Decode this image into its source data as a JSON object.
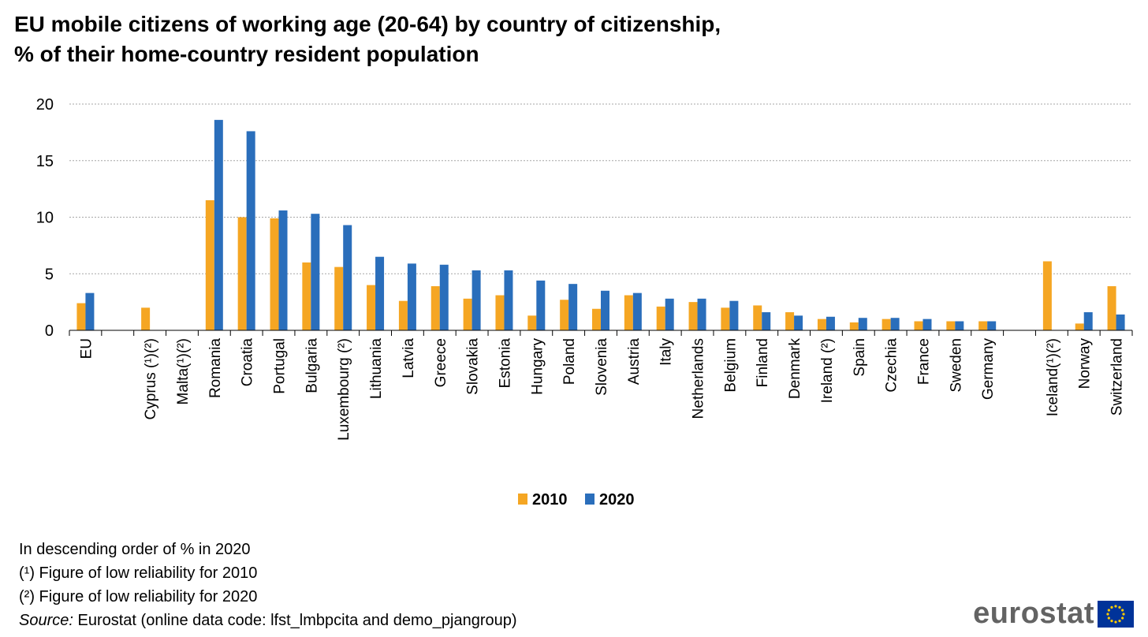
{
  "title": {
    "line1": "EU mobile citizens of working age (20-64) by country of citizenship,",
    "line2": "% of their home-country resident population"
  },
  "colors": {
    "2010": "#F5A623",
    "2020": "#2A6EBB",
    "grid": "#A6A6A6",
    "axis": "#000000"
  },
  "chart_data": {
    "type": "bar",
    "title": "EU mobile citizens of working age (20-64) by country of citizenship, % of their home-country resident population",
    "xlabel": "",
    "ylabel": "",
    "ylim": [
      0,
      20
    ],
    "yticks": [
      0,
      5,
      10,
      15,
      20
    ],
    "grid": true,
    "legend_position": "bottom-center",
    "categories": [
      "EU",
      "",
      "Cyprus (¹)(²)",
      "Malta(¹)(²)",
      "Romania",
      "Croatia",
      "Portugal",
      "Bulgaria",
      "Luxembourg (²)",
      "Lithuania",
      "Latvia",
      "Greece",
      "Slovakia",
      "Estonia",
      "Hungary",
      "Poland",
      "Slovenia",
      "Austria",
      "Italy",
      "Netherlands",
      "Belgium",
      "Finland",
      "Denmark",
      "Ireland (²)",
      "Spain",
      "Czechia",
      "France",
      "Sweden",
      "Germany",
      "",
      "Iceland(¹)(²)",
      "Norway",
      "Switzerland"
    ],
    "series": [
      {
        "name": "2010",
        "values": [
          2.4,
          null,
          2.0,
          null,
          11.5,
          10.0,
          9.9,
          6.0,
          5.6,
          4.0,
          2.6,
          3.9,
          2.8,
          3.1,
          1.3,
          2.7,
          1.9,
          3.1,
          2.1,
          2.5,
          2.0,
          2.2,
          1.6,
          1.0,
          0.7,
          1.0,
          0.8,
          0.8,
          0.8,
          null,
          6.1,
          0.6,
          3.9
        ]
      },
      {
        "name": "2020",
        "values": [
          3.3,
          null,
          null,
          null,
          18.6,
          17.6,
          10.6,
          10.3,
          9.3,
          6.5,
          5.9,
          5.8,
          5.3,
          5.3,
          4.4,
          4.1,
          3.5,
          3.3,
          2.8,
          2.8,
          2.6,
          1.6,
          1.3,
          1.2,
          1.1,
          1.1,
          1.0,
          0.8,
          0.8,
          null,
          null,
          1.6,
          1.4
        ]
      }
    ]
  },
  "notes": {
    "order": "In descending order of % in 2020",
    "note1": "(¹) Figure of low reliability for 2010",
    "note2": "(²) Figure of low reliability for 2020",
    "source_label": "Source:",
    "source_text": " Eurostat (online data code: lfst_lmbpcita and demo_pjangroup)"
  },
  "logo": {
    "text": "eurostat",
    "flag_icon": "eu-flag-icon"
  }
}
